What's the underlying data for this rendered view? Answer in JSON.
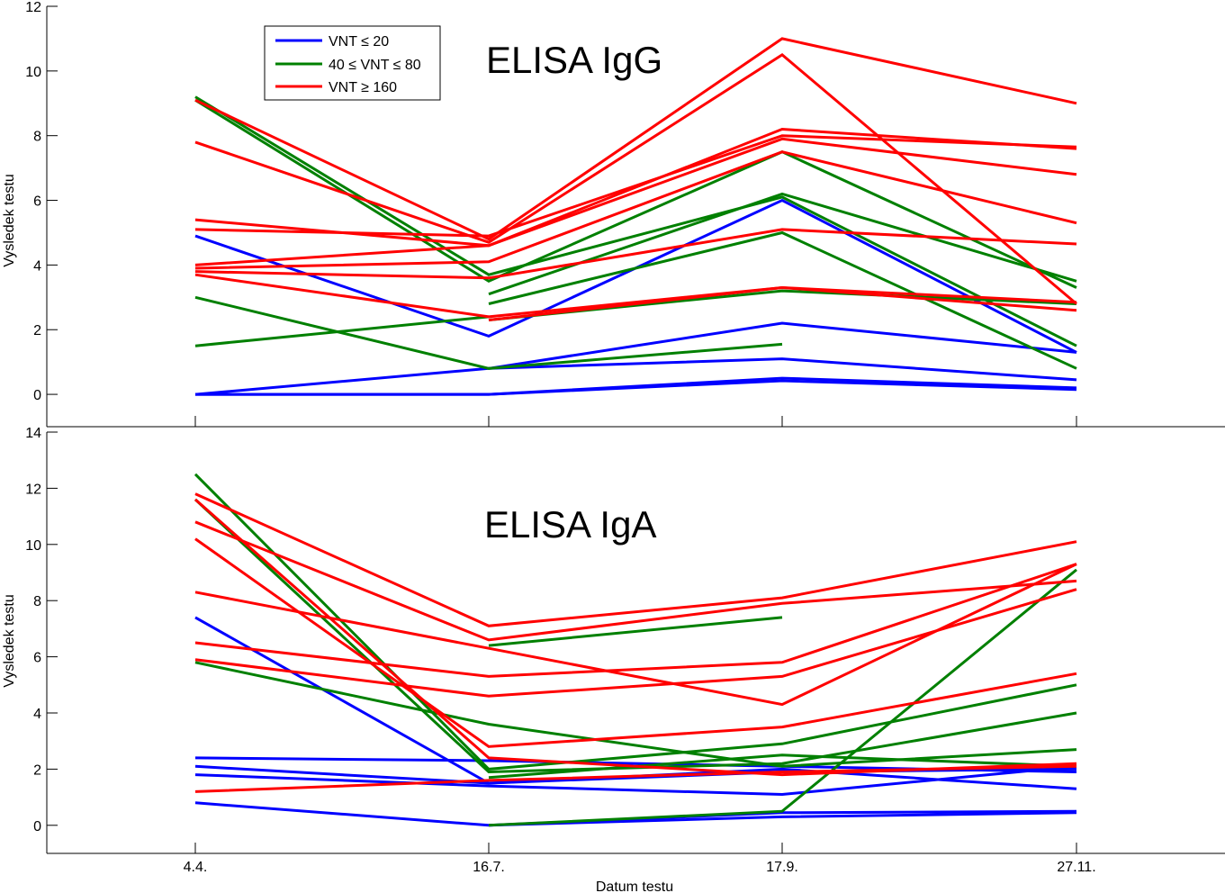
{
  "chart_data": [
    {
      "type": "line",
      "title": "ELISA IgG",
      "ylabel": "Vysledek testu",
      "xlabel": "",
      "categories": [
        "4.4.",
        "16.7.",
        "17.9.",
        "27.11."
      ],
      "ylim": [
        -1,
        12
      ],
      "yticks": [
        0,
        2,
        4,
        6,
        8,
        10,
        12
      ],
      "legend": {
        "placement": "top-left",
        "entries": [
          {
            "label": "VNT ≤ 20",
            "color": "#0000ff"
          },
          {
            "label": "40 ≤ VNT ≤ 80",
            "color": "#008000"
          },
          {
            "label": "VNT ≥ 160",
            "color": "#ff0000"
          }
        ]
      },
      "series": [
        {
          "group": "blue",
          "color": "#0000ff",
          "values": [
            4.9,
            1.8,
            6.0,
            1.3
          ]
        },
        {
          "group": "blue",
          "color": "#0000ff",
          "values": [
            null,
            0.8,
            2.2,
            1.3
          ]
        },
        {
          "group": "blue",
          "color": "#0000ff",
          "values": [
            0.0,
            0.8,
            1.1,
            0.45
          ]
        },
        {
          "group": "blue",
          "color": "#0000ff",
          "values": [
            0.0,
            0.0,
            0.5,
            0.2
          ]
        },
        {
          "group": "blue",
          "color": "#0000ff",
          "values": [
            0.0,
            0.0,
            0.42,
            0.15
          ]
        },
        {
          "group": "green",
          "color": "#008000",
          "values": [
            9.2,
            3.7,
            6.1,
            1.5
          ]
        },
        {
          "group": "green",
          "color": "#008000",
          "values": [
            9.1,
            3.5,
            7.5,
            3.3
          ]
        },
        {
          "group": "green",
          "color": "#008000",
          "values": [
            null,
            3.1,
            6.2,
            3.5
          ]
        },
        {
          "group": "green",
          "color": "#008000",
          "values": [
            null,
            2.8,
            5.0,
            0.8
          ]
        },
        {
          "group": "green",
          "color": "#008000",
          "values": [
            null,
            2.3,
            3.2,
            2.8
          ]
        },
        {
          "group": "green",
          "color": "#008000",
          "values": [
            1.5,
            2.4,
            null,
            null
          ]
        },
        {
          "group": "green",
          "color": "#008000",
          "values": [
            3.0,
            0.8,
            1.55,
            null
          ]
        },
        {
          "group": "red",
          "color": "#ff0000",
          "values": [
            9.1,
            4.8,
            11.0,
            9.0
          ]
        },
        {
          "group": "red",
          "color": "#ff0000",
          "values": [
            7.8,
            4.7,
            10.5,
            2.8
          ]
        },
        {
          "group": "red",
          "color": "#ff0000",
          "values": [
            5.4,
            4.6,
            8.2,
            7.6
          ]
        },
        {
          "group": "red",
          "color": "#ff0000",
          "values": [
            5.1,
            4.9,
            8.0,
            7.65
          ]
        },
        {
          "group": "red",
          "color": "#ff0000",
          "values": [
            4.0,
            4.6,
            7.9,
            6.8
          ]
        },
        {
          "group": "red",
          "color": "#ff0000",
          "values": [
            3.9,
            4.1,
            7.5,
            5.3
          ]
        },
        {
          "group": "red",
          "color": "#ff0000",
          "values": [
            3.8,
            3.6,
            5.1,
            4.65
          ]
        },
        {
          "group": "red",
          "color": "#ff0000",
          "values": [
            3.7,
            2.4,
            3.3,
            2.6
          ]
        },
        {
          "group": "red",
          "color": "#ff0000",
          "values": [
            null,
            2.3,
            3.3,
            2.85
          ]
        }
      ]
    },
    {
      "type": "line",
      "title": "ELISA IgA",
      "ylabel": "Vysledek testu",
      "xlabel": "Datum testu",
      "categories": [
        "4.4.",
        "16.7.",
        "17.9.",
        "27.11."
      ],
      "ylim": [
        -1,
        14
      ],
      "yticks": [
        0,
        2,
        4,
        6,
        8,
        10,
        12,
        14
      ],
      "series": [
        {
          "group": "blue",
          "color": "#0000ff",
          "values": [
            7.4,
            1.5,
            2.0,
            1.3
          ]
        },
        {
          "group": "blue",
          "color": "#0000ff",
          "values": [
            2.4,
            2.3,
            2.1,
            1.9
          ]
        },
        {
          "group": "blue",
          "color": "#0000ff",
          "values": [
            2.1,
            1.5,
            1.9,
            2.0
          ]
        },
        {
          "group": "blue",
          "color": "#0000ff",
          "values": [
            1.8,
            1.4,
            1.1,
            2.1
          ]
        },
        {
          "group": "blue",
          "color": "#0000ff",
          "values": [
            0.8,
            0.0,
            0.3,
            0.45
          ]
        },
        {
          "group": "blue",
          "color": "#0000ff",
          "values": [
            null,
            0.0,
            0.45,
            0.5
          ]
        },
        {
          "group": "green",
          "color": "#008000",
          "values": [
            12.5,
            2.0,
            2.9,
            5.0
          ]
        },
        {
          "group": "green",
          "color": "#008000",
          "values": [
            11.6,
            1.9,
            2.2,
            4.0
          ]
        },
        {
          "group": "green",
          "color": "#008000",
          "values": [
            5.8,
            3.6,
            2.1,
            2.7
          ]
        },
        {
          "group": "green",
          "color": "#008000",
          "values": [
            null,
            1.7,
            2.5,
            2.1
          ]
        },
        {
          "group": "green",
          "color": "#008000",
          "values": [
            null,
            0.0,
            0.5,
            9.1
          ]
        },
        {
          "group": "green",
          "color": "#008000",
          "values": [
            null,
            6.4,
            7.4,
            null
          ]
        },
        {
          "group": "red",
          "color": "#ff0000",
          "values": [
            11.8,
            7.1,
            8.1,
            10.1
          ]
        },
        {
          "group": "red",
          "color": "#ff0000",
          "values": [
            11.6,
            2.4,
            1.8,
            2.2
          ]
        },
        {
          "group": "red",
          "color": "#ff0000",
          "values": [
            10.8,
            6.6,
            7.9,
            8.7
          ]
        },
        {
          "group": "red",
          "color": "#ff0000",
          "values": [
            10.2,
            2.8,
            3.5,
            5.4
          ]
        },
        {
          "group": "red",
          "color": "#ff0000",
          "values": [
            8.3,
            6.3,
            4.3,
            9.3
          ]
        },
        {
          "group": "red",
          "color": "#ff0000",
          "values": [
            6.5,
            5.3,
            5.8,
            9.3
          ]
        },
        {
          "group": "red",
          "color": "#ff0000",
          "values": [
            5.9,
            4.6,
            5.3,
            8.4
          ]
        },
        {
          "group": "red",
          "color": "#ff0000",
          "values": [
            1.2,
            1.6,
            1.9,
            2.1
          ]
        }
      ]
    }
  ]
}
